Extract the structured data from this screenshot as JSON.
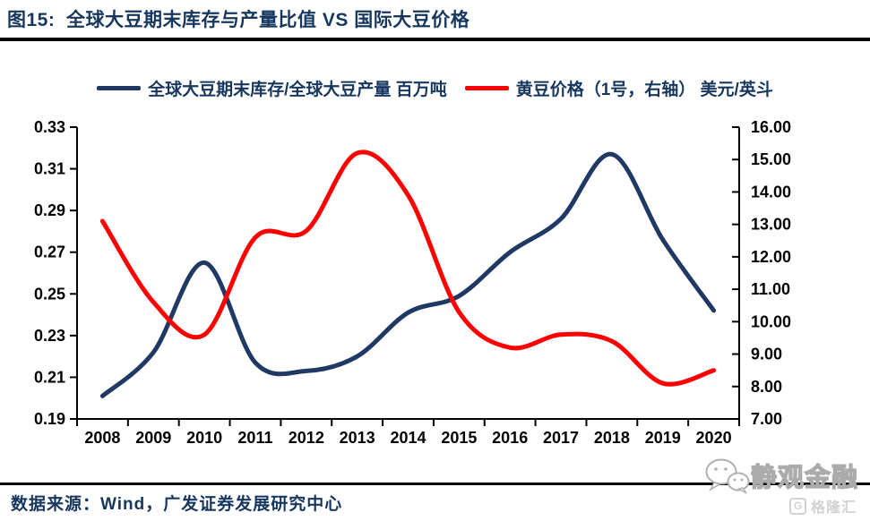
{
  "header": {
    "title": "图15:  全球大豆期末库存与产量比值 VS 国际大豆价格"
  },
  "legend": [
    {
      "label": "全球大豆期末库存/全球大豆产量 百万吨",
      "color": "#1f3864"
    },
    {
      "label": "黄豆价格（1号，右轴） 美元/英斗",
      "color": "#fe0000"
    }
  ],
  "footer": {
    "source": "数据来源：Wind，广发证券发展研究中心"
  },
  "watermark": {
    "brand": "静观金融",
    "platform": "格隆汇",
    "platform_badge": "G"
  },
  "chart_data": {
    "type": "line",
    "title": "全球大豆期末库存与产量比值 VS 国际大豆价格",
    "x": [
      2008,
      2009,
      2010,
      2011,
      2012,
      2013,
      2014,
      2015,
      2016,
      2017,
      2018,
      2019,
      2020
    ],
    "x_tick_labels": [
      "2008",
      "2009",
      "2010",
      "2011",
      "2012",
      "2013",
      "2014",
      "2015",
      "2016",
      "2017",
      "2018",
      "2019",
      "2020"
    ],
    "series": [
      {
        "name": "全球大豆期末库存/全球大豆产量 百万吨",
        "axis": "left",
        "color": "#1f3864",
        "values": [
          0.201,
          0.222,
          0.265,
          0.217,
          0.213,
          0.22,
          0.241,
          0.249,
          0.27,
          0.286,
          0.317,
          0.276,
          0.242
        ]
      },
      {
        "name": "黄豆价格（1号，右轴） 美元/英斗",
        "axis": "right",
        "color": "#fe0000",
        "values": [
          13.1,
          10.6,
          9.6,
          12.6,
          12.8,
          15.2,
          13.9,
          10.3,
          9.2,
          9.6,
          9.4,
          8.1,
          8.5
        ]
      }
    ],
    "left_axis": {
      "min": 0.19,
      "max": 0.33,
      "step": 0.02,
      "tick_labels": [
        "0.19",
        "0.21",
        "0.23",
        "0.25",
        "0.27",
        "0.29",
        "0.31",
        "0.33"
      ]
    },
    "right_axis": {
      "min": 7,
      "max": 16,
      "step": 1,
      "tick_labels": [
        "7.00",
        "8.00",
        "9.00",
        "10.00",
        "11.00",
        "12.00",
        "13.00",
        "14.00",
        "15.00",
        "16.00"
      ]
    },
    "grid": false,
    "legend_position": "top"
  }
}
